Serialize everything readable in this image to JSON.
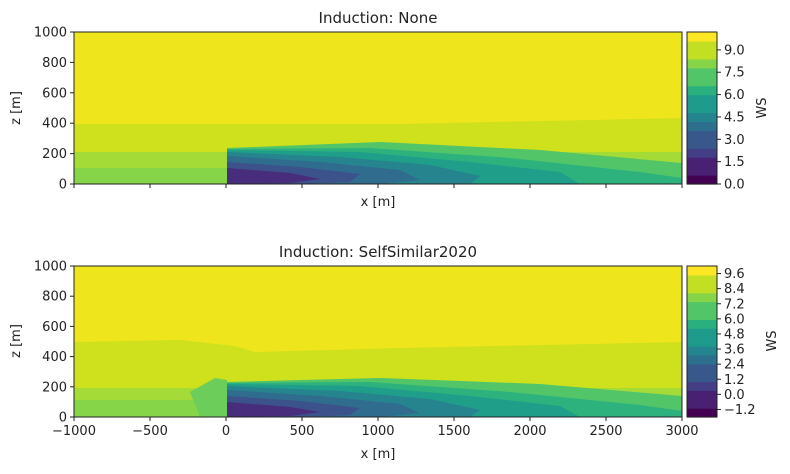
{
  "chart_data": [
    {
      "type": "contour",
      "title": "Induction: None",
      "xlabel": "x [m]",
      "ylabel": "z [m]",
      "xlim": [
        -1000,
        3000
      ],
      "ylim": [
        0,
        1000
      ],
      "xticks": [],
      "yticks": [
        "0",
        "200",
        "400",
        "600",
        "800",
        "1000"
      ],
      "colorbar": {
        "label": "WS",
        "range": [
          0.0,
          10.2
        ],
        "ticks": [
          0.0,
          1.5,
          3.0,
          4.5,
          6.0,
          7.5,
          9.0
        ],
        "tick_labels": [
          "0.0",
          "1.5",
          "3.0",
          "4.5",
          "6.0",
          "7.5",
          "9.0"
        ]
      },
      "free_stream_ws": 10.0,
      "rotor": {
        "x": 0,
        "z_bottom": 0,
        "z_top": 225
      },
      "induction": false
    },
    {
      "type": "contour",
      "title": "Induction: SelfSimilar2020",
      "xlabel": "x [m]",
      "ylabel": "z [m]",
      "xlim": [
        -1000,
        3000
      ],
      "ylim": [
        0,
        1000
      ],
      "xticks": [
        "−1000",
        "−500",
        "0",
        "500",
        "1000",
        "1500",
        "2000",
        "2500",
        "3000"
      ],
      "yticks": [
        "0",
        "200",
        "400",
        "600",
        "800",
        "1000"
      ],
      "colorbar": {
        "label": "WS",
        "range": [
          -1.8,
          10.2
        ],
        "ticks": [
          -1.2,
          0.0,
          1.2,
          2.4,
          3.6,
          4.8,
          6.0,
          7.2,
          8.4,
          9.6
        ],
        "tick_labels": [
          "−1.2",
          "0.0",
          "1.2",
          "2.4",
          "3.6",
          "4.8",
          "6.0",
          "7.2",
          "8.4",
          "9.6"
        ]
      },
      "free_stream_ws": 10.0,
      "rotor": {
        "x": 0,
        "z_bottom": 0,
        "z_top": 225
      },
      "induction": true
    }
  ]
}
